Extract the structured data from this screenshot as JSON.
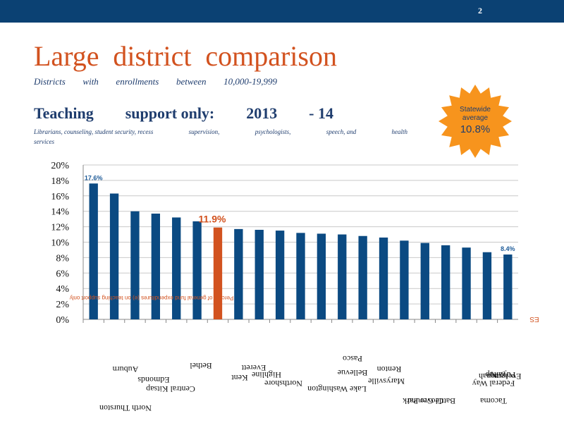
{
  "header": {
    "slide_number": "2"
  },
  "title_words": [
    "Large",
    "district",
    "comparison"
  ],
  "subtitle_words": [
    "Districts",
    "with",
    "enrollments",
    "between",
    "10,000-19,999"
  ],
  "heading_words": [
    "Teaching",
    "support only:",
    "2013",
    "- 14"
  ],
  "description": {
    "words": [
      "Librarians, counseling, student security, recess",
      "supervision,",
      "psychologists,",
      "speech, and",
      "health"
    ],
    "line2": "services"
  },
  "badge": {
    "line1": "Statewide",
    "line2": "average",
    "value": "10.8%",
    "color": "#f7941d"
  },
  "colors": {
    "bar": "#0b4a82",
    "highlight": "#d2521f",
    "grid": "#c9c9c9",
    "topbar": "#0b4173"
  },
  "chart_data": {
    "type": "bar",
    "y_tick_labels": [
      "0%",
      "2%",
      "4%",
      "6%",
      "8%",
      "10%",
      "12%",
      "14%",
      "16%",
      "18%",
      "20%"
    ],
    "ylim": [
      0,
      20
    ],
    "grid": true,
    "values": [
      17.6,
      16.3,
      14.0,
      13.7,
      13.2,
      12.7,
      11.9,
      11.7,
      11.6,
      11.5,
      11.2,
      11.1,
      11.0,
      10.8,
      10.6,
      10.2,
      9.9,
      9.6,
      9.3,
      8.7,
      8.4
    ],
    "highlight_index": 6,
    "data_labels": [
      {
        "index": 0,
        "text": "17.6%"
      },
      {
        "index": 6,
        "text": "11.9%"
      },
      {
        "index": 20,
        "text": "8.4%"
      }
    ],
    "ylabel": "Percent of general fund expenditures (e) on teaching support only",
    "corner_label": "ES",
    "category_labels": [
      "North Thurston",
      "Auburn",
      "Edmonds",
      "Central Kitsap",
      "Bethel",
      "Kent",
      "Everett",
      "Highline",
      "Northshore",
      "Lake Washington",
      "Bellevue",
      "Pasco",
      "Marysville",
      "Renton",
      "Clover Park",
      "Battle Ground",
      "Issaquah",
      "Evergreen",
      "Federal Way",
      "Puyallup",
      "Tacoma"
    ]
  }
}
